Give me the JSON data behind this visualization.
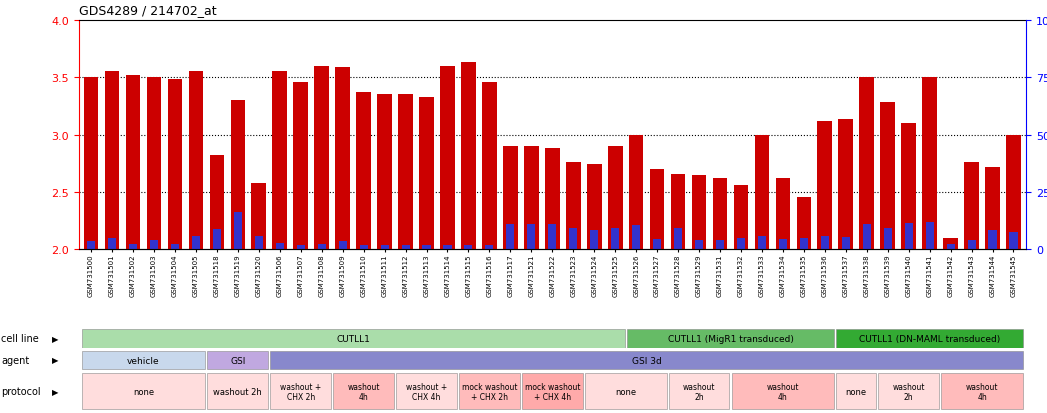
{
  "title": "GDS4289 / 214702_at",
  "samples": [
    "GSM731500",
    "GSM731501",
    "GSM731502",
    "GSM731503",
    "GSM731504",
    "GSM731505",
    "GSM731518",
    "GSM731519",
    "GSM731520",
    "GSM731506",
    "GSM731507",
    "GSM731508",
    "GSM731509",
    "GSM731510",
    "GSM731511",
    "GSM731512",
    "GSM731513",
    "GSM731514",
    "GSM731515",
    "GSM731516",
    "GSM731517",
    "GSM731521",
    "GSM731522",
    "GSM731523",
    "GSM731524",
    "GSM731525",
    "GSM731526",
    "GSM731527",
    "GSM731528",
    "GSM731529",
    "GSM731531",
    "GSM731532",
    "GSM731533",
    "GSM731534",
    "GSM731535",
    "GSM731536",
    "GSM731537",
    "GSM731538",
    "GSM731539",
    "GSM731540",
    "GSM731541",
    "GSM731542",
    "GSM731543",
    "GSM731544",
    "GSM731545"
  ],
  "red_values": [
    3.5,
    3.55,
    3.52,
    3.5,
    3.48,
    3.55,
    2.82,
    3.3,
    2.58,
    3.55,
    3.46,
    3.6,
    3.59,
    3.37,
    3.35,
    3.35,
    3.33,
    3.6,
    3.63,
    3.46,
    2.9,
    2.9,
    2.88,
    2.76,
    2.74,
    2.9,
    3.0,
    2.7,
    2.66,
    2.65,
    2.62,
    2.56,
    3.0,
    2.62,
    2.46,
    3.12,
    3.14,
    3.5,
    3.28,
    3.1,
    3.5,
    2.1,
    2.76,
    2.72,
    3.0
  ],
  "blue_heights": [
    0.07,
    0.1,
    0.05,
    0.08,
    0.05,
    0.12,
    0.18,
    0.33,
    0.12,
    0.06,
    0.04,
    0.05,
    0.07,
    0.04,
    0.04,
    0.04,
    0.04,
    0.04,
    0.04,
    0.04,
    0.22,
    0.22,
    0.22,
    0.19,
    0.17,
    0.19,
    0.21,
    0.09,
    0.19,
    0.08,
    0.08,
    0.1,
    0.12,
    0.09,
    0.1,
    0.12,
    0.11,
    0.22,
    0.19,
    0.23,
    0.24,
    0.05,
    0.08,
    0.17,
    0.15
  ],
  "ylim_left": [
    2.0,
    4.0
  ],
  "ylim_right": [
    0,
    100
  ],
  "yticks_left": [
    2.0,
    2.5,
    3.0,
    3.5,
    4.0
  ],
  "yticks_right": [
    0,
    25,
    50,
    75,
    100
  ],
  "bar_color": "#cc0000",
  "blue_color": "#3333cc",
  "cell_line_groups": [
    {
      "label": "CUTLL1",
      "start": 0,
      "end": 26,
      "color": "#aaddaa"
    },
    {
      "label": "CUTLL1 (MigR1 transduced)",
      "start": 26,
      "end": 36,
      "color": "#66bb66"
    },
    {
      "label": "CUTLL1 (DN-MAML transduced)",
      "start": 36,
      "end": 45,
      "color": "#33aa33"
    }
  ],
  "agent_groups": [
    {
      "label": "vehicle",
      "start": 0,
      "end": 6,
      "color": "#c8d8ec"
    },
    {
      "label": "GSI",
      "start": 6,
      "end": 9,
      "color": "#c0a8e0"
    },
    {
      "label": "GSI 3d",
      "start": 9,
      "end": 45,
      "color": "#8888cc"
    }
  ],
  "protocol_groups": [
    {
      "label": "none",
      "start": 0,
      "end": 6,
      "color": "#ffdddd"
    },
    {
      "label": "washout 2h",
      "start": 6,
      "end": 9,
      "color": "#ffdddd"
    },
    {
      "label": "washout +\nCHX 2h",
      "start": 9,
      "end": 12,
      "color": "#ffdddd"
    },
    {
      "label": "washout\n4h",
      "start": 12,
      "end": 15,
      "color": "#ffbbbb"
    },
    {
      "label": "washout +\nCHX 4h",
      "start": 15,
      "end": 18,
      "color": "#ffdddd"
    },
    {
      "label": "mock washout\n+ CHX 2h",
      "start": 18,
      "end": 21,
      "color": "#ffbbbb"
    },
    {
      "label": "mock washout\n+ CHX 4h",
      "start": 21,
      "end": 24,
      "color": "#ffaaaa"
    },
    {
      "label": "none",
      "start": 24,
      "end": 28,
      "color": "#ffdddd"
    },
    {
      "label": "washout\n2h",
      "start": 28,
      "end": 31,
      "color": "#ffdddd"
    },
    {
      "label": "washout\n4h",
      "start": 31,
      "end": 36,
      "color": "#ffbbbb"
    },
    {
      "label": "none",
      "start": 36,
      "end": 38,
      "color": "#ffdddd"
    },
    {
      "label": "washout\n2h",
      "start": 38,
      "end": 41,
      "color": "#ffdddd"
    },
    {
      "label": "washout\n4h",
      "start": 41,
      "end": 45,
      "color": "#ffbbbb"
    }
  ]
}
